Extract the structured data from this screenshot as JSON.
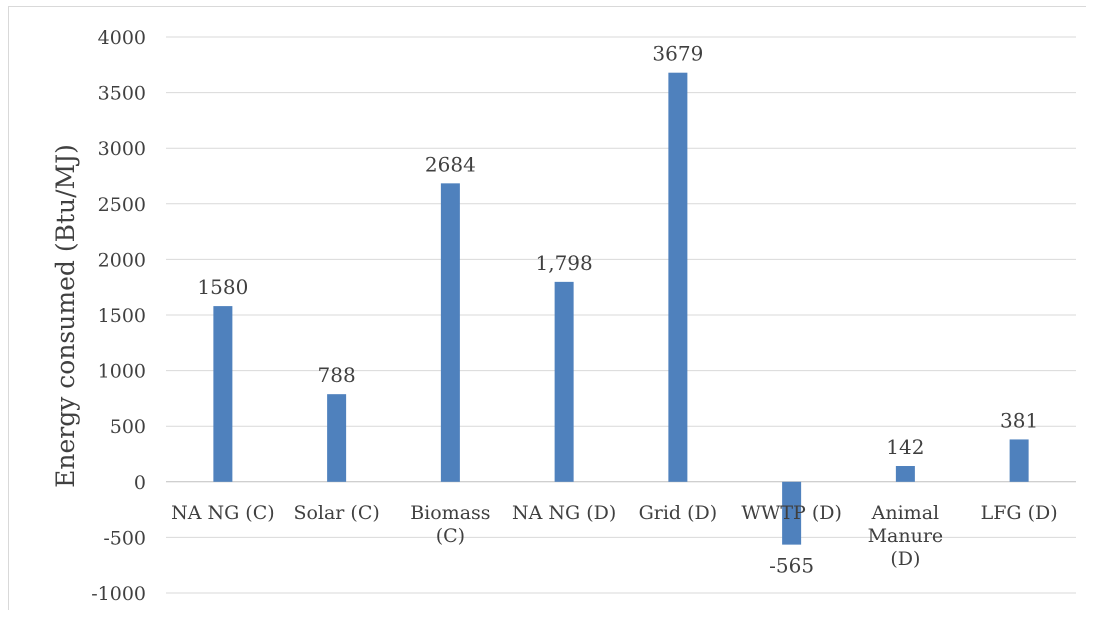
{
  "chart_data": {
    "type": "bar",
    "title": "",
    "xlabel": "",
    "ylabel": "Energy consumed (Btu/MJ)",
    "ylim": [
      -1000,
      4000
    ],
    "yticks": [
      4000,
      3500,
      3000,
      2500,
      2000,
      1500,
      1000,
      500,
      0,
      -500,
      -1000
    ],
    "grid": true,
    "legend": "none",
    "bar_color": "#4f81bd",
    "categories": [
      [
        "NA NG (C)"
      ],
      [
        "Solar (C)"
      ],
      [
        "Biomass",
        "(C)"
      ],
      [
        "NA NG (D)"
      ],
      [
        "Grid (D)"
      ],
      [
        "WWTP (D)"
      ],
      [
        "Animal",
        "Manure",
        "(D)"
      ],
      [
        "LFG (D)"
      ]
    ],
    "values": [
      1580,
      788,
      2684,
      1798,
      3679,
      -565,
      142,
      381
    ],
    "data_labels": [
      "1580",
      "788",
      "2684",
      "1,798",
      "3679",
      "-565",
      "142",
      "381"
    ]
  }
}
